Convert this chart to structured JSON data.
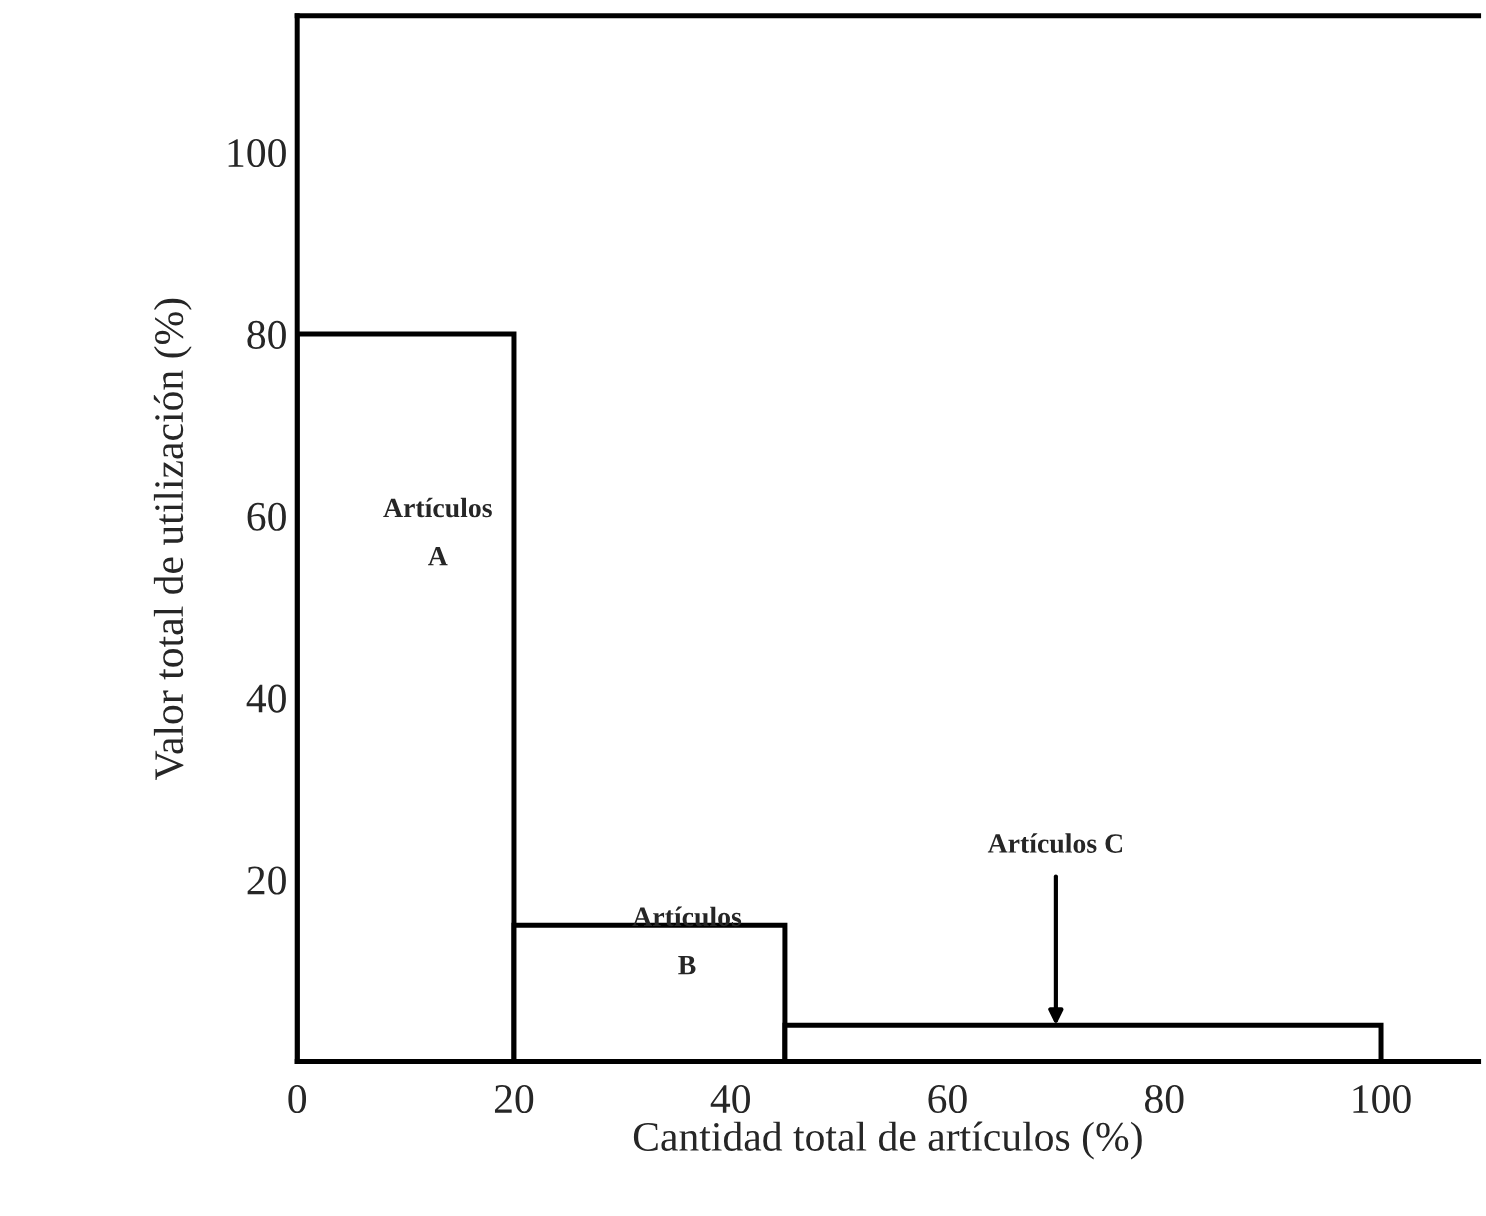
{
  "chart_data": {
    "type": "histogram",
    "xlabel": "Cantidad total de artículos (%)",
    "ylabel": "Valor total de utilización (%)",
    "bins": [
      0,
      20,
      45,
      100
    ],
    "values": [
      80,
      15,
      4
    ],
    "color": "#ffffff",
    "xlim": [
      0,
      109
    ],
    "ylim": [
      0,
      115
    ],
    "xticks": [
      0,
      20,
      40,
      60,
      80,
      100
    ],
    "yticks": [
      20,
      40,
      60,
      80,
      100
    ],
    "grid": false,
    "annotations": [
      "Artículos\nA",
      "Artículos\nB",
      {
        "text": "Artículos C",
        "x": 70,
        "y": 4
      }
    ]
  }
}
